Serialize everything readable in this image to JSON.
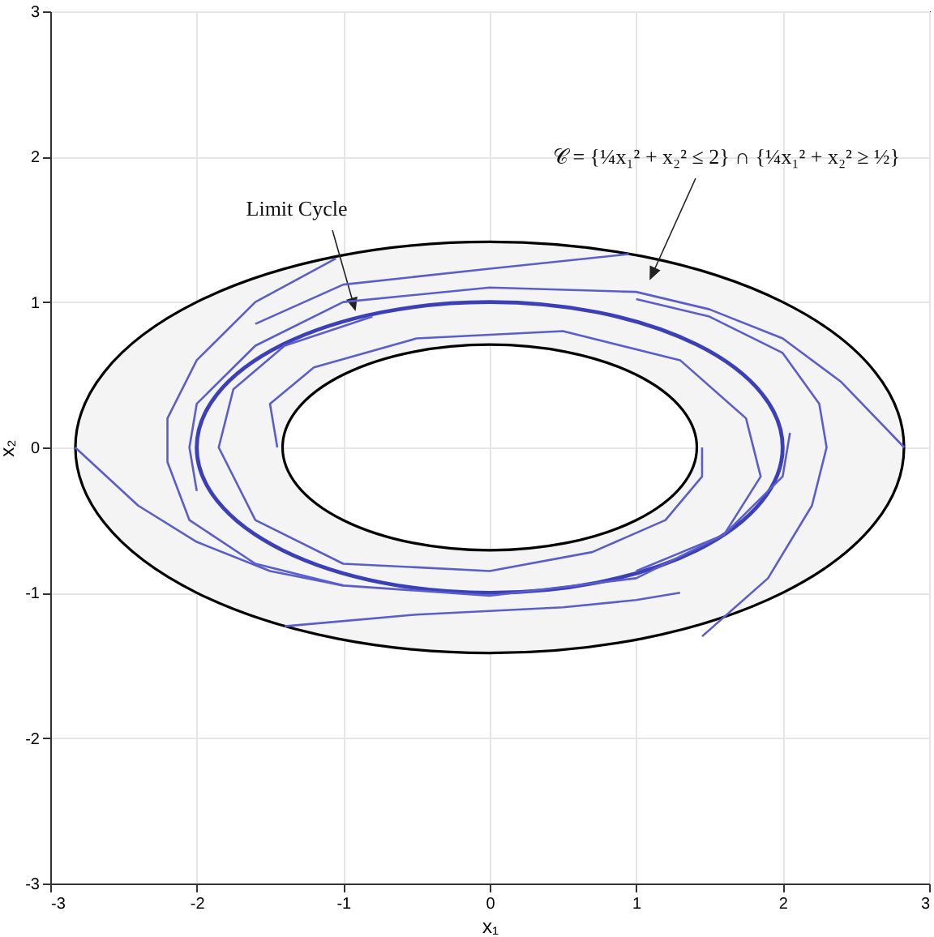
{
  "chart_data": {
    "type": "line",
    "xlabel": "x₁",
    "ylabel": "x₂",
    "xlim": [
      -3,
      3
    ],
    "ylim": [
      -3,
      3
    ],
    "xticks": [
      -3,
      -2,
      -1,
      0,
      1,
      2,
      3
    ],
    "yticks": [
      -3,
      -2,
      -1,
      0,
      1,
      2,
      3
    ],
    "grid": true,
    "line_style": "solid",
    "annotations": [
      "Limit Cycle",
      "𝒞 = {¼x₁² + x₂² ≤ 2} ∩ {¼x₁² + x₂² ≥ ½}"
    ],
    "series": [
      {
        "color": "#5a5ecc",
        "x": [
          -2.83,
          -2.4,
          -2,
          -1.5,
          -1,
          0,
          1,
          1.6,
          2,
          2.05
        ],
        "values": [
          0,
          -0.4,
          -0.65,
          -0.85,
          -0.95,
          -1.02,
          -0.9,
          -0.6,
          -0.2,
          0.1
        ]
      },
      {
        "color": "#5a5ecc",
        "x": [
          2.83,
          2.4,
          2,
          1.5,
          1,
          0,
          -1,
          -1.6,
          -2,
          -2.05,
          -2
        ],
        "values": [
          0,
          0.45,
          0.75,
          0.95,
          1.07,
          1.1,
          1.0,
          0.7,
          0.3,
          0,
          -0.3
        ]
      },
      {
        "color": "#5a5ecc",
        "x": [
          1.45,
          1.9,
          2.2,
          2.3,
          2.25,
          2,
          1.5,
          1
        ],
        "values": [
          -1.3,
          -0.9,
          -0.4,
          0,
          0.3,
          0.65,
          0.9,
          1.02
        ]
      },
      {
        "color": "#5a5ecc",
        "x": [
          -1.05,
          -1.6,
          -2,
          -2.2,
          -2.2,
          -2.05,
          -1.6,
          -1
        ],
        "values": [
          1.3,
          1.0,
          0.6,
          0.2,
          -0.1,
          -0.5,
          -0.8,
          -0.95
        ]
      },
      {
        "color": "#5a5ecc",
        "x": [
          1.45,
          1.45,
          1.2,
          0.7,
          0,
          -1,
          -1.6,
          -1.85,
          -1.75,
          -1.4,
          -0.8
        ],
        "values": [
          0,
          -0.2,
          -0.5,
          -0.72,
          -0.85,
          -0.8,
          -0.5,
          0,
          0.4,
          0.7,
          0.9
        ]
      },
      {
        "color": "#5a5ecc",
        "x": [
          -1.45,
          -1.5,
          -1.2,
          -0.5,
          0.5,
          1.3,
          1.75,
          1.85,
          1.6,
          1
        ],
        "values": [
          0,
          0.3,
          0.55,
          0.75,
          0.8,
          0.6,
          0.2,
          -0.2,
          -0.6,
          -0.85
        ]
      },
      {
        "color": "#5a5ecc",
        "x": [
          -1.4,
          -0.5,
          0.5,
          1,
          1.3
        ],
        "values": [
          -1.23,
          -1.15,
          -1.1,
          -1.05,
          -1.0
        ]
      },
      {
        "color": "#5a5ecc",
        "x": [
          0.95,
          0,
          -1,
          -1.6
        ],
        "values": [
          1.33,
          1.23,
          1.12,
          0.85
        ]
      }
    ]
  }
}
